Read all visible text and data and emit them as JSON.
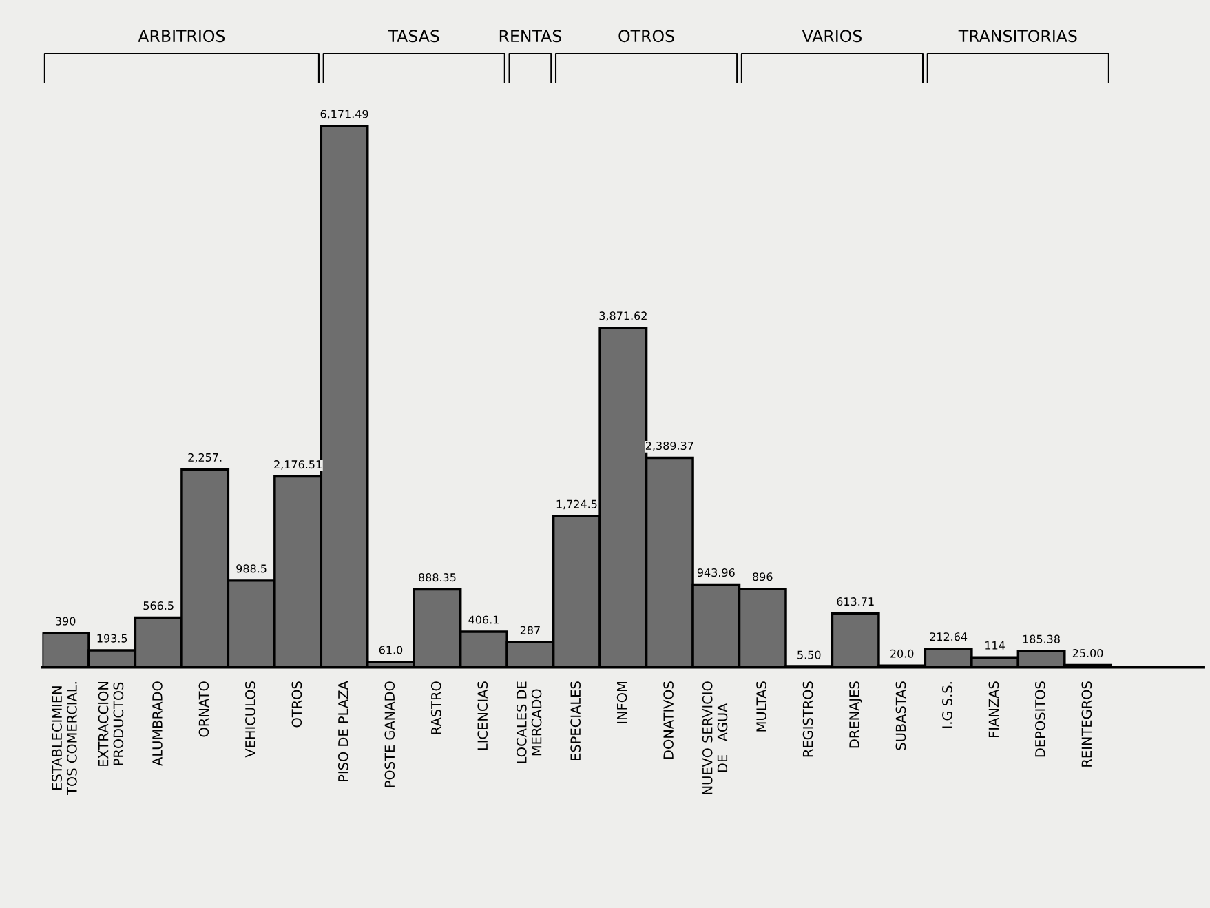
{
  "chart_data": {
    "type": "bar",
    "categories": [
      "ESTABLECIMIEN\nTOS COMERCIAL.",
      "EXTRACCION\nPRODUCTOS",
      "ALUMBRADO",
      "ORNATO",
      "VEHICULOS",
      "OTROS",
      "PISO DE PLAZA",
      "POSTE GANADO",
      "RASTRO",
      "LICENCIAS",
      "LOCALES DE\nMERCADO",
      "ESPECIALES",
      "INFOM",
      "DONATIVOS",
      "NUEVO SERVICIO\nDE   AGUA",
      "MULTAS",
      "REGISTROS",
      "DRENAJES",
      "SUBASTAS",
      "I.G S.S.",
      "FIANZAS",
      "DEPOSITOS",
      "REINTEGROS"
    ],
    "values": [
      390,
      193.5,
      566.5,
      2257,
      988.5,
      2176.51,
      6171.49,
      61.0,
      888.35,
      406.1,
      287,
      1724.5,
      3871.62,
      2389.37,
      943.96,
      896,
      5.5,
      613.71,
      20.0,
      212.64,
      114,
      185.38,
      25.0
    ],
    "value_labels": [
      "390",
      "193.5",
      "566.5",
      "2,257.",
      "988.5",
      "2,176.51",
      "6,171.49",
      "61.0",
      "888.35",
      "406.1",
      "287",
      "1,724.5",
      "3,871.62",
      "2,389.37",
      "943.96",
      "896",
      "5.50",
      "613.71",
      "20.0",
      "212.64",
      "114",
      "185.38",
      "25.00"
    ],
    "color": "#6e6e6e",
    "annotations": [
      "ARBITRIOS",
      "TASAS",
      "RENTAS",
      "OTROS",
      "VARIOS",
      "TRANSITORIAS"
    ]
  }
}
